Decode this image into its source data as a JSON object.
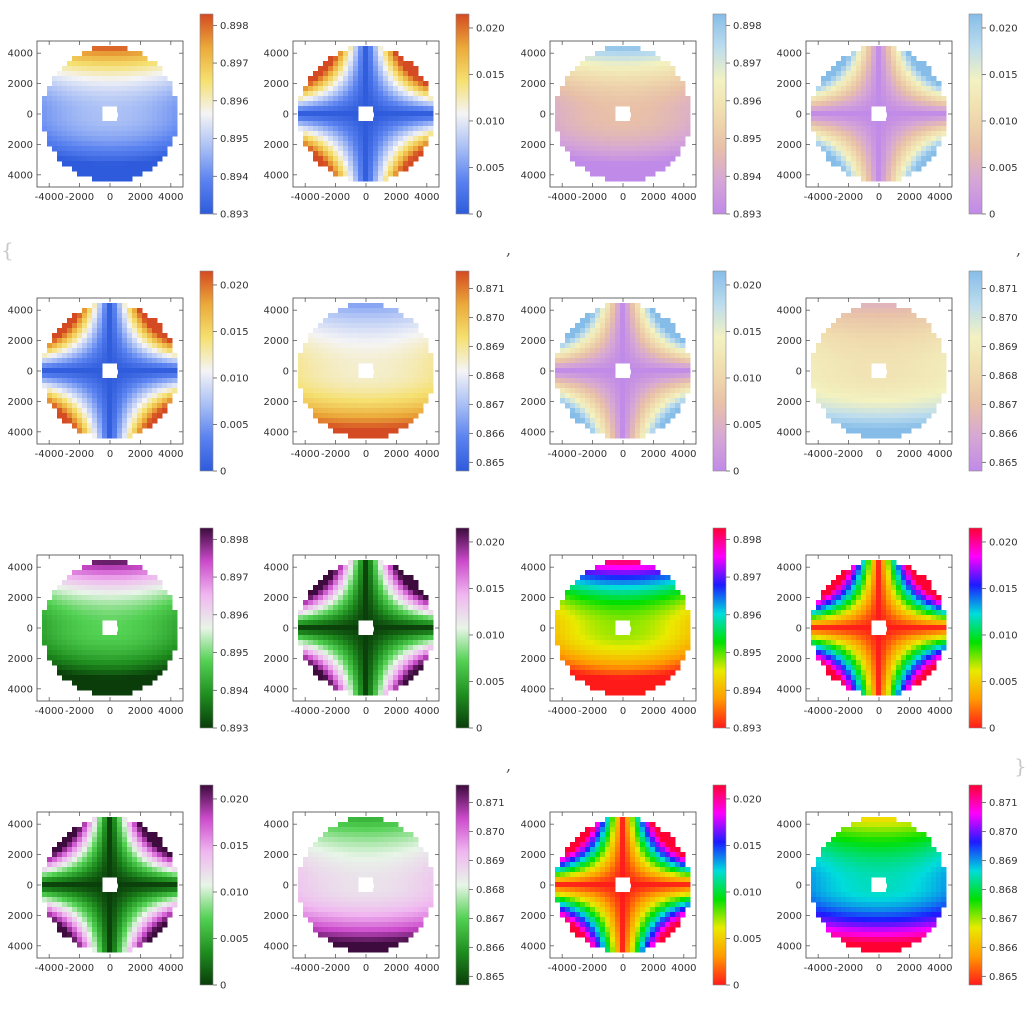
{
  "decor": {
    "open_brace": "{",
    "close_brace": "}",
    "comma": ","
  },
  "chart_data": {
    "type": "heatmap",
    "layout": "4 rows x 4 columns of density plots, each with a color bar legend on the right",
    "xticks": [
      "-4000",
      "-2000",
      "0",
      "2000",
      "4000"
    ],
    "yticks": [
      "4000",
      "2000",
      "0",
      "2000",
      "4000"
    ],
    "xlim": [
      -4800,
      4800
    ],
    "ylim": [
      -4800,
      4800
    ],
    "domain": "circular wafer of radius ~4400 with small white hole near center",
    "ranges": {
      "A": {
        "min": 0.893,
        "max": 0.8983,
        "ticks": [
          "0.898",
          "0.897",
          "0.896",
          "0.895",
          "0.894",
          "0.893"
        ]
      },
      "B": {
        "min": 0,
        "max": 0.0215,
        "ticks": [
          "0.020",
          "0.015",
          "0.010",
          "0.005",
          "0"
        ]
      },
      "C": {
        "min": 0.8647,
        "max": 0.8716,
        "ticks": [
          "0.871",
          "0.870",
          "0.869",
          "0.868",
          "0.867",
          "0.866",
          "0.865"
        ]
      }
    },
    "panels": [
      {
        "row": 0,
        "col": 0,
        "field": "A",
        "palette": "temperature"
      },
      {
        "row": 0,
        "col": 1,
        "field": "B",
        "palette": "temperature"
      },
      {
        "row": 0,
        "col": 2,
        "field": "A",
        "palette": "pastel"
      },
      {
        "row": 0,
        "col": 3,
        "field": "B",
        "palette": "pastel"
      },
      {
        "row": 1,
        "col": 0,
        "field": "B",
        "palette": "temperature"
      },
      {
        "row": 1,
        "col": 1,
        "field": "C",
        "palette": "temperature"
      },
      {
        "row": 1,
        "col": 2,
        "field": "B",
        "palette": "pastel"
      },
      {
        "row": 1,
        "col": 3,
        "field": "C",
        "palette": "pastel"
      },
      {
        "row": 2,
        "col": 0,
        "field": "A",
        "palette": "green-magenta"
      },
      {
        "row": 2,
        "col": 1,
        "field": "B",
        "palette": "green-magenta"
      },
      {
        "row": 2,
        "col": 2,
        "field": "A",
        "palette": "rainbow"
      },
      {
        "row": 2,
        "col": 3,
        "field": "B",
        "palette": "rainbow"
      },
      {
        "row": 3,
        "col": 0,
        "field": "B",
        "palette": "green-magenta"
      },
      {
        "row": 3,
        "col": 1,
        "field": "C",
        "palette": "green-magenta"
      },
      {
        "row": 3,
        "col": 2,
        "field": "B",
        "palette": "rainbow"
      },
      {
        "row": 3,
        "col": 3,
        "field": "C",
        "palette": "rainbow"
      }
    ],
    "palettes": {
      "temperature": [
        "#2e5bdb",
        "#5a82f0",
        "#a9bff5",
        "#f4f4f6",
        "#f5e070",
        "#eba93a",
        "#d44a22"
      ],
      "pastel": [
        "#c08ae8",
        "#d6a6d6",
        "#e8c0a8",
        "#f0dcae",
        "#f3f2c0",
        "#bcdcee",
        "#86bde8"
      ],
      "green-magenta": [
        "#0a3d0a",
        "#1f8f1f",
        "#52d152",
        "#e8f5e8",
        "#f0b6f0",
        "#cc4acc",
        "#3d0b3d"
      ],
      "rainbow": [
        "#ff1a1a",
        "#ff9a00",
        "#eaea00",
        "#00e000",
        "#00dcdc",
        "#1c1cff",
        "#ff00ff",
        "#ff0033"
      ]
    }
  }
}
